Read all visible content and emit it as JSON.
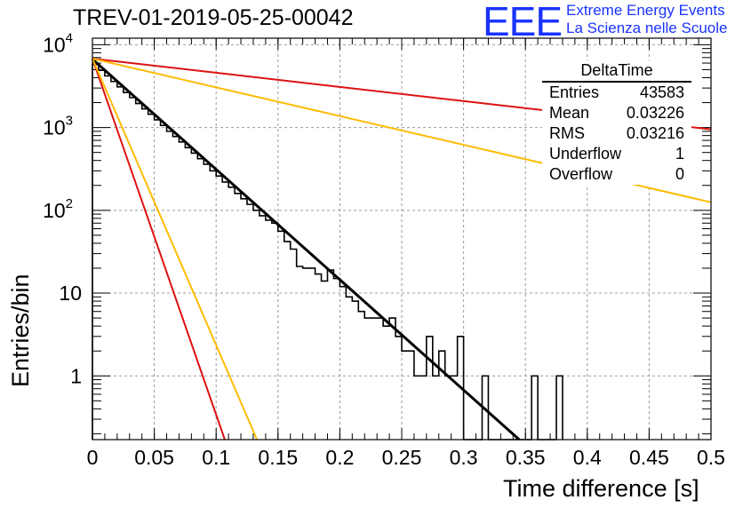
{
  "title": "TREV-01-2019-05-25-00042",
  "logo": {
    "text": "EEE",
    "line1": "Extreme Energy Events",
    "line2": "La Scienza nelle Scuole",
    "color": "#1a33ff"
  },
  "stats": {
    "name": "DeltaTime",
    "rows": [
      {
        "label": "Entries",
        "value": "43583"
      },
      {
        "label": "Mean",
        "value": "0.03226"
      },
      {
        "label": "RMS",
        "value": "0.03216"
      },
      {
        "label": "Underflow",
        "value": "1"
      },
      {
        "label": "Overflow",
        "value": "0"
      }
    ]
  },
  "chart_data": {
    "type": "line",
    "xlabel": "Time difference [s]",
    "ylabel": "Entries/bin",
    "xlim": [
      0,
      0.5
    ],
    "ylim": [
      0.17,
      12000
    ],
    "yscale": "log",
    "grid": true,
    "xticks": [
      "0",
      "0.05",
      "0.1",
      "0.15",
      "0.2",
      "0.25",
      "0.3",
      "0.35",
      "0.4",
      "0.45",
      "0.5"
    ],
    "yticks": [
      {
        "value": 1,
        "label": "1"
      },
      {
        "value": 10,
        "label": "10"
      },
      {
        "value": 100,
        "label": "10",
        "sup": "2"
      },
      {
        "value": 1000,
        "label": "10",
        "sup": "3"
      },
      {
        "value": 10000,
        "label": "10",
        "sup": "4"
      }
    ],
    "histogram": {
      "color": "#000000",
      "bin_width": 0.005,
      "values": [
        5800,
        4900,
        4200,
        3600,
        3100,
        2650,
        2300,
        1950,
        1680,
        1450,
        1240,
        1060,
        900,
        780,
        670,
        570,
        490,
        420,
        360,
        300,
        260,
        220,
        190,
        160,
        138,
        118,
        100,
        86,
        76,
        70,
        56,
        42,
        34,
        21,
        20,
        20,
        17,
        14,
        19,
        15,
        12,
        9,
        8,
        6,
        5,
        5,
        5,
        4,
        5,
        3,
        2,
        2,
        1,
        1,
        3,
        1,
        2,
        1,
        1,
        3,
        0.01,
        0.01,
        0.01,
        1,
        0.01,
        0.01,
        0.01,
        0.01,
        0.01,
        0.01,
        0.01,
        1,
        0.01,
        0.01,
        0.01,
        1
      ]
    },
    "series": [
      {
        "color": "#000000",
        "points": [
          [
            0,
            6700
          ],
          [
            0.345,
            0.17
          ]
        ]
      },
      {
        "color": "#dd1111",
        "points": [
          [
            0,
            6800
          ],
          [
            0.5,
            950
          ]
        ]
      },
      {
        "color": "#ffbb00",
        "points": [
          [
            0,
            6800
          ],
          [
            0.5,
            125
          ]
        ]
      },
      {
        "color": "#dd1111",
        "points": [
          [
            0,
            6800
          ],
          [
            0.107,
            0.17
          ]
        ]
      },
      {
        "color": "#ffbb00",
        "points": [
          [
            0,
            6800
          ],
          [
            0.133,
            0.17
          ]
        ]
      }
    ]
  }
}
